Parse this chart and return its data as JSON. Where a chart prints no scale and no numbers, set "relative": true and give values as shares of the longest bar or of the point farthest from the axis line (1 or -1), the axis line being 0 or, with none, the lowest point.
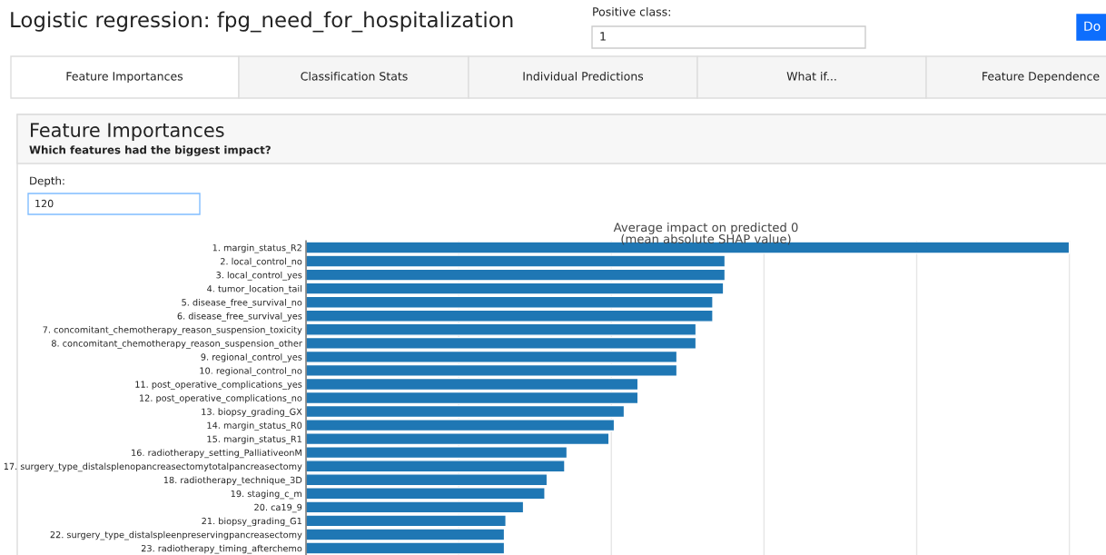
{
  "chart_data": [
    {
      "type": "other",
      "title": "Logistic regression: fpg_need_for_hospitalization",
      "annotations": [
        "Positive class:",
        "1",
        "Do",
        "Feature Importances",
        "Classification Stats",
        "Individual Predictions",
        "What if...",
        "Feature Dependence",
        "Feature Importances",
        "Which features had the biggest impact?",
        "Depth:",
        "120"
      ]
    },
    {
      "type": "bar",
      "orientation": "horizontal",
      "relative": true,
      "grid": "x",
      "title": "Average impact on predicted 0\n(mean absolute SHAP value)",
      "categories": [
        "1. margin_status_R2",
        "2. local_control_no",
        "3. local_control_yes",
        "4. tumor_location_tail",
        "5. disease_free_survival_no",
        "6. disease_free_survival_yes",
        "7. concomitant_chemotherapy_reason_suspension_toxicity",
        "8. concomitant_chemotherapy_reason_suspension_other",
        "9. regional_control_yes",
        "10. regional_control_no",
        "11. post_operative_complications_yes",
        "12. post_operative_complications_no",
        "13. biopsy_grading_GX",
        "14. margin_status_R0",
        "15. margin_status_R1",
        "16. radiotherapy_setting_PalliativeonM",
        "17. surgery_type_distalsplenopancreasectomytotalpancreasectomy",
        "18. radiotherapy_technique_3D",
        "19. staging_c_m",
        "20. ca19_9",
        "21. biopsy_grading_G1",
        "22. surgery_type_distalspleenpreservingpancreasectomy",
        "23. radiotherapy_timing_afterchemo"
      ],
      "values": [
        1.0,
        0.549,
        0.549,
        0.547,
        0.533,
        0.533,
        0.511,
        0.511,
        0.486,
        0.486,
        0.435,
        0.435,
        0.417,
        0.404,
        0.397,
        0.342,
        0.339,
        0.316,
        0.313,
        0.285,
        0.262,
        0.26,
        0.26
      ],
      "color": "#1f77b4"
    }
  ]
}
